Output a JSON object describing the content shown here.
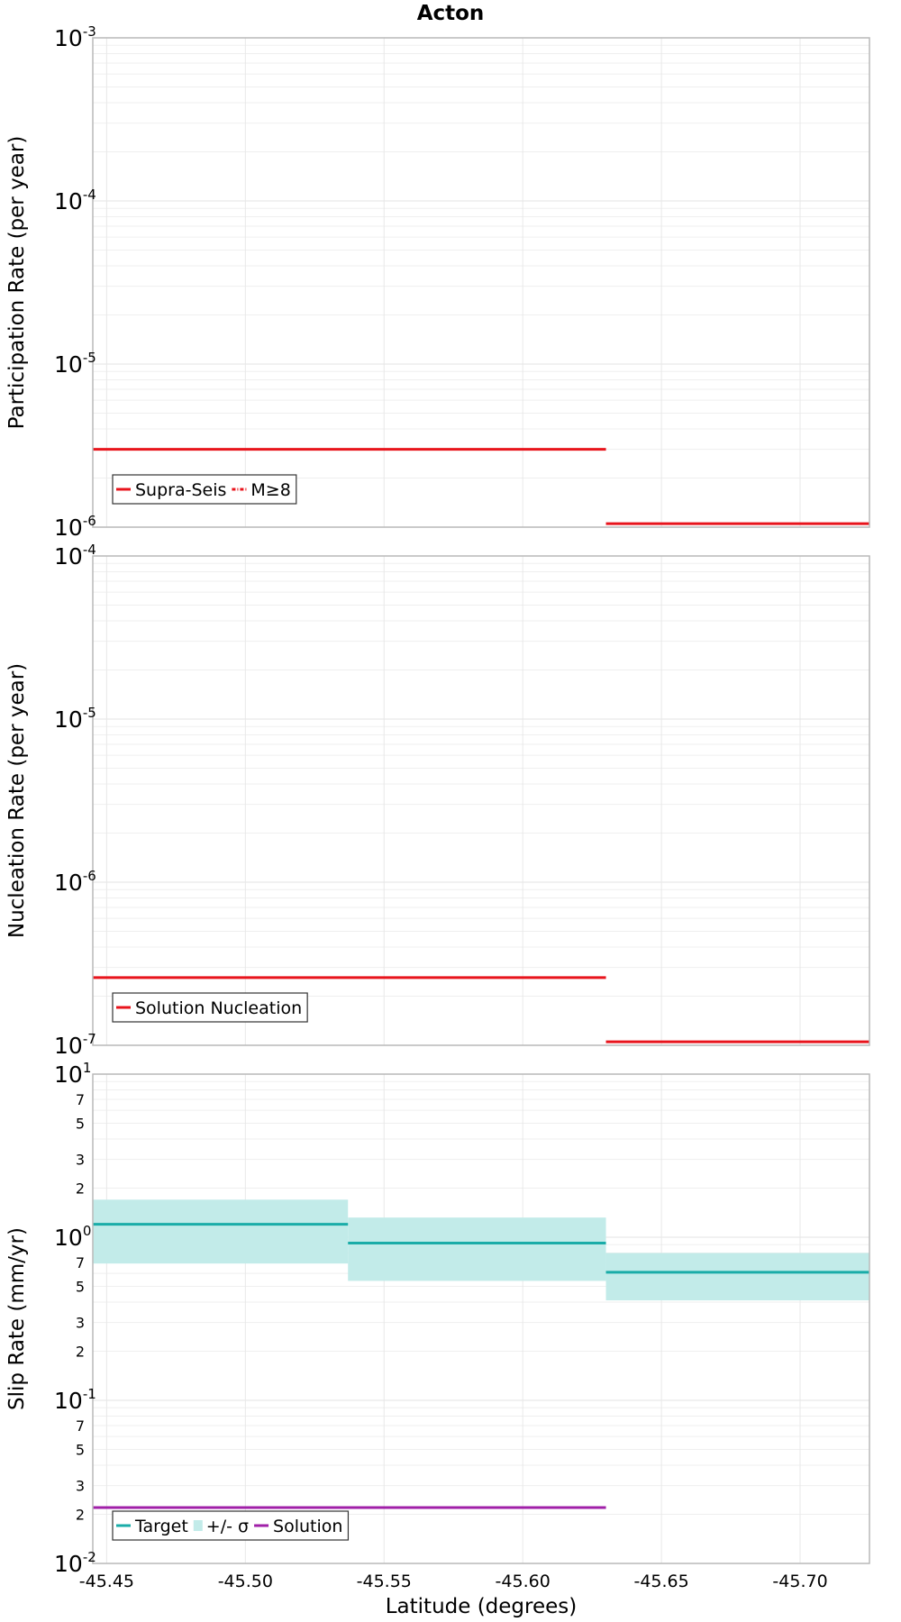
{
  "title": "Acton",
  "xlabel": "Latitude (degrees)",
  "chart_data": [
    {
      "type": "line",
      "ylabel": "Participation Rate (per year)",
      "yscale": "log",
      "ylim": [
        1e-06,
        0.001
      ],
      "y_ticks": [
        {
          "base": "10",
          "exp": "-6"
        },
        {
          "base": "10",
          "exp": "-5"
        },
        {
          "base": "10",
          "exp": "-4"
        },
        {
          "base": "10",
          "exp": "-3"
        }
      ],
      "xlim": [
        -45.445,
        -45.725
      ],
      "x_reversed": true,
      "grid": true,
      "legend": {
        "placement": "bottom-left",
        "entries": [
          {
            "label": "Supra-Seis",
            "style": "solid",
            "color": "#e8141c"
          },
          {
            "label": "M≥8",
            "style": "dash-dot",
            "color": "#e8141c"
          }
        ]
      },
      "series": [
        {
          "name": "Supra-Seis",
          "color": "#e8141c",
          "segments": [
            {
              "x": [
                -45.445,
                -45.63
              ],
              "y": 3e-06
            },
            {
              "x": [
                -45.63,
                -45.725
              ],
              "y": 1.05e-06
            }
          ]
        }
      ]
    },
    {
      "type": "line",
      "ylabel": "Nucleation Rate (per year)",
      "yscale": "log",
      "ylim": [
        1e-07,
        0.0001
      ],
      "y_ticks": [
        {
          "base": "10",
          "exp": "-7"
        },
        {
          "base": "10",
          "exp": "-6"
        },
        {
          "base": "10",
          "exp": "-5"
        },
        {
          "base": "10",
          "exp": "-4"
        }
      ],
      "xlim": [
        -45.445,
        -45.725
      ],
      "x_reversed": true,
      "grid": true,
      "legend": {
        "placement": "bottom-left",
        "entries": [
          {
            "label": "Solution Nucleation",
            "style": "solid",
            "color": "#e8141c"
          }
        ]
      },
      "series": [
        {
          "name": "Solution Nucleation",
          "color": "#e8141c",
          "segments": [
            {
              "x": [
                -45.445,
                -45.63
              ],
              "y": 2.6e-07
            },
            {
              "x": [
                -45.63,
                -45.725
              ],
              "y": 1.05e-07
            }
          ]
        }
      ]
    },
    {
      "type": "line",
      "ylabel": "Slip Rate (mm/yr)",
      "xlabel": "Latitude (degrees)",
      "yscale": "log",
      "ylim": [
        0.01,
        10
      ],
      "y_ticks": [
        {
          "base": "10",
          "exp": "-2"
        },
        {
          "base": "10",
          "exp": "-1"
        },
        {
          "base": "10",
          "exp": "0"
        },
        {
          "base": "10",
          "exp": "1"
        }
      ],
      "y_minor_labels": [
        "2",
        "3",
        "5",
        "7",
        "2",
        "3",
        "5",
        "7",
        "2",
        "3",
        "5",
        "7"
      ],
      "y_minor_values": [
        0.02,
        0.03,
        0.05,
        0.07,
        0.2,
        0.3,
        0.5,
        0.7,
        2,
        3,
        5,
        7
      ],
      "xlim": [
        -45.445,
        -45.725
      ],
      "x_reversed": true,
      "x_ticks": [
        "-45.45",
        "-45.50",
        "-45.55",
        "-45.60",
        "-45.65",
        "-45.70"
      ],
      "x_tick_values": [
        -45.45,
        -45.5,
        -45.55,
        -45.6,
        -45.65,
        -45.7
      ],
      "grid": true,
      "legend": {
        "placement": "bottom-left",
        "entries": [
          {
            "label": "Target",
            "style": "solid",
            "color": "#1aaca8"
          },
          {
            "label": "+/- σ",
            "style": "fill",
            "color": "#c2ebe9"
          },
          {
            "label": "Solution",
            "style": "solid",
            "color": "#a020a8"
          }
        ]
      },
      "series": [
        {
          "name": "Target",
          "color": "#1aaca8",
          "segments": [
            {
              "x": [
                -45.445,
                -45.537
              ],
              "y": 1.2
            },
            {
              "x": [
                -45.537,
                -45.63
              ],
              "y": 0.92
            },
            {
              "x": [
                -45.63,
                -45.725
              ],
              "y": 0.61
            }
          ]
        },
        {
          "name": "+/- σ",
          "color": "#c2ebe9",
          "bands": [
            {
              "x": [
                -45.445,
                -45.537
              ],
              "low": 0.69,
              "high": 1.7
            },
            {
              "x": [
                -45.537,
                -45.63
              ],
              "low": 0.54,
              "high": 1.32
            },
            {
              "x": [
                -45.63,
                -45.725
              ],
              "low": 0.41,
              "high": 0.8
            }
          ]
        },
        {
          "name": "Solution",
          "color": "#a020a8",
          "segments": [
            {
              "x": [
                -45.445,
                -45.63
              ],
              "y": 0.022
            }
          ]
        }
      ]
    }
  ]
}
